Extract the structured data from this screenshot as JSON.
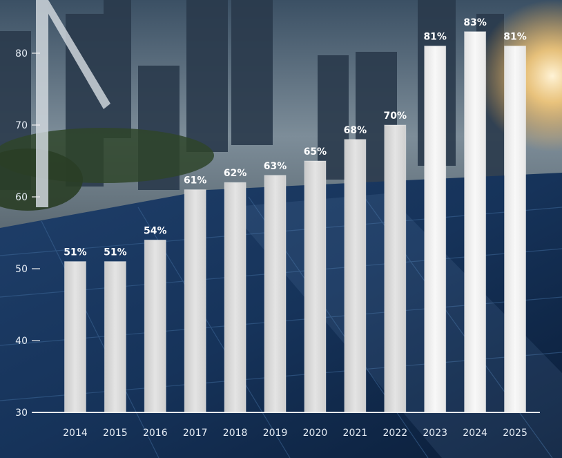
{
  "chart_data": {
    "type": "bar",
    "title": "",
    "xlabel": "",
    "ylabel": "",
    "categories": [
      "2014",
      "2015",
      "2016",
      "2017",
      "2018",
      "2019",
      "2020",
      "2021",
      "2022",
      "2023",
      "2024",
      "2025"
    ],
    "values": [
      51,
      51,
      54,
      61,
      62,
      63,
      65,
      68,
      70,
      81,
      83,
      81
    ],
    "data_labels": [
      "51%",
      "51%",
      "54%",
      "61%",
      "62%",
      "63%",
      "65%",
      "68%",
      "70%",
      "81%",
      "83%",
      "81%"
    ],
    "ylim": [
      30,
      85
    ],
    "yticks": [
      30,
      40,
      50,
      60,
      70,
      80
    ],
    "grid": false,
    "legend": "none",
    "colors": {
      "bar": "#dcdcdc",
      "bar_highlight": "#f4f4f4",
      "axis": "#f0f0f0",
      "text": "#ffffff",
      "sky_top": "#3e5468",
      "sky_bottom": "#8a99a6",
      "panel_dark": "#0d2444",
      "panel_light": "#2f5a8c",
      "sun": "#ffd58a",
      "foliage": "#2e4a2a"
    }
  }
}
